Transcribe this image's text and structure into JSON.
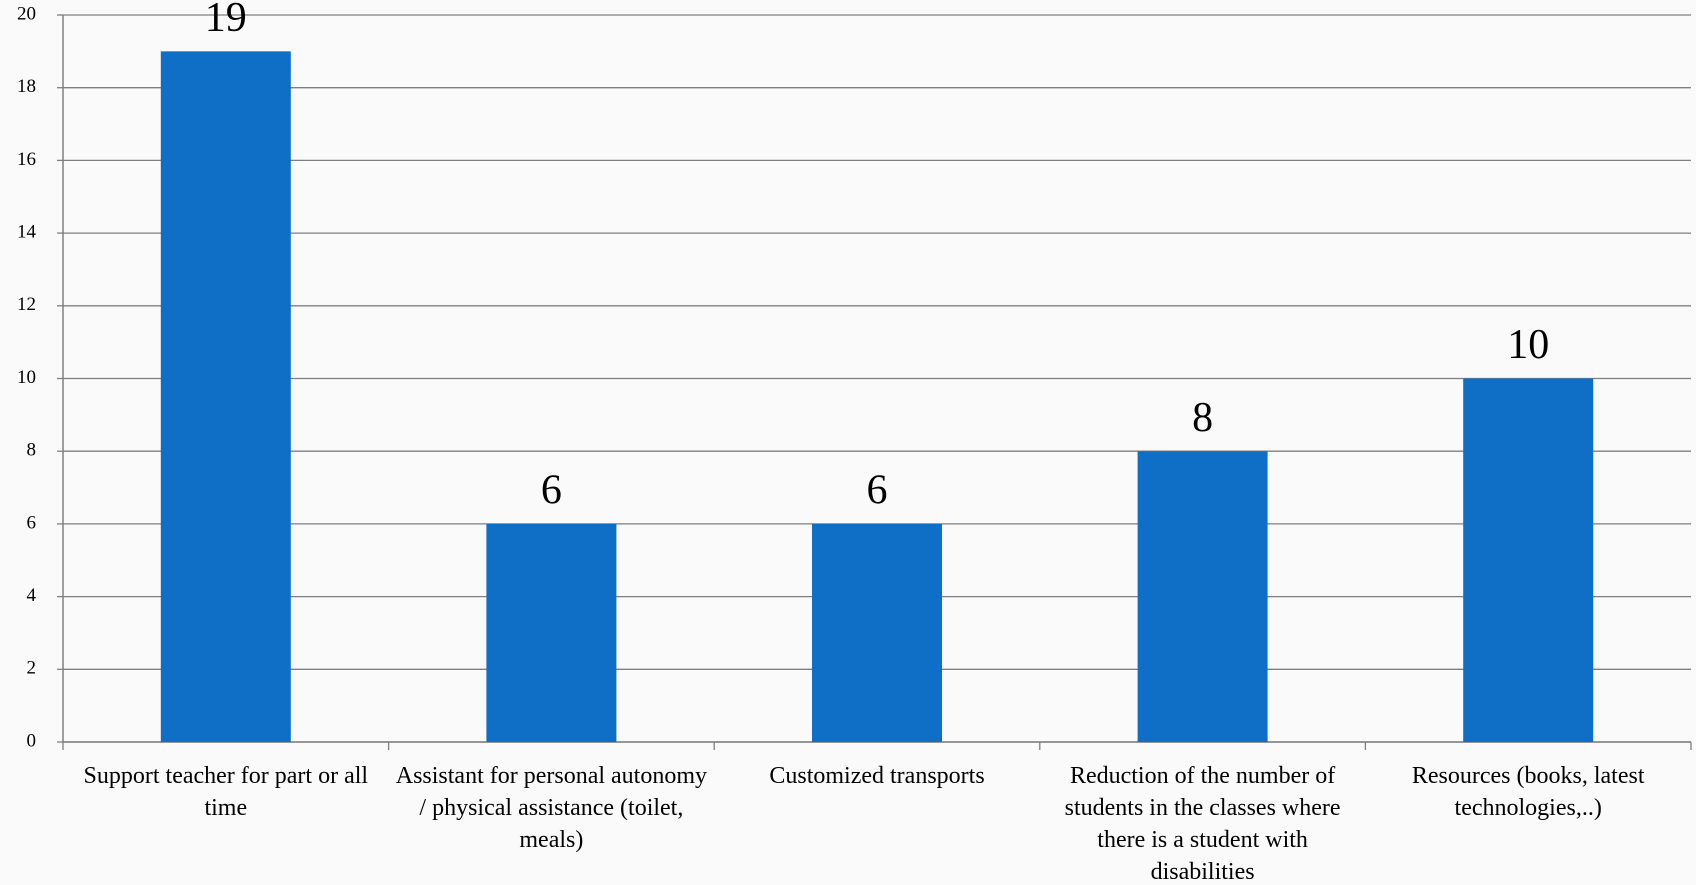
{
  "chart_data": {
    "type": "bar",
    "categories": [
      "Support teacher for part or all time",
      "Assistant for personal autonomy / physical assistance (toilet, meals)",
      "Customized transports",
      "Reduction of the number of students in the classes where there is a student with disabilities",
      "Resources (books, latest technologies,..)"
    ],
    "values": [
      19,
      6,
      6,
      8,
      10
    ],
    "color": "#0f6fc6",
    "ylim": [
      0,
      20
    ],
    "yticks": [
      0,
      2,
      4,
      6,
      8,
      10,
      12,
      14,
      16,
      18,
      20
    ],
    "grid": true
  }
}
